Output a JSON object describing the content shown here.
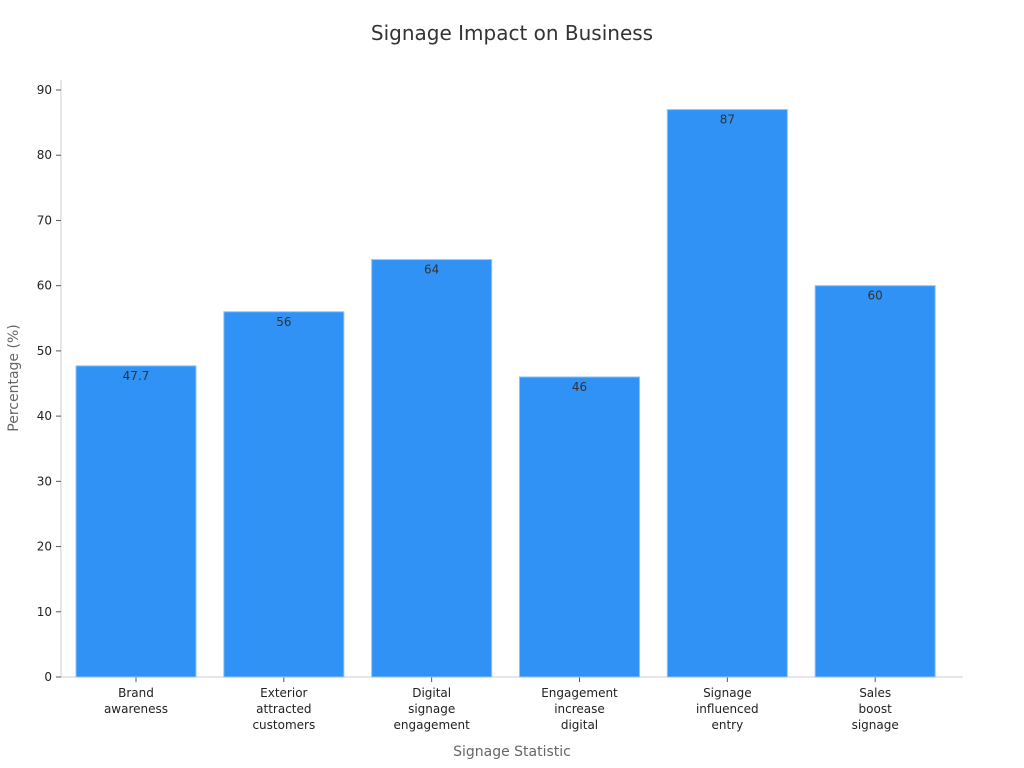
{
  "chart_data": {
    "type": "bar",
    "title": "Signage Impact on Business",
    "xlabel": "Signage Statistic",
    "ylabel": "Percentage (%)",
    "ylim": [
      0,
      90
    ],
    "yticks": [
      0,
      10,
      20,
      30,
      40,
      50,
      60,
      70,
      80,
      90
    ],
    "grid": false,
    "categories": [
      [
        "Brand",
        "awareness"
      ],
      [
        "Exterior",
        "attracted",
        "customers"
      ],
      [
        "Digital",
        "signage",
        "engagement"
      ],
      [
        "Engagement",
        "increase",
        "digital"
      ],
      [
        "Signage",
        "influenced",
        "entry"
      ],
      [
        "Sales",
        "boost",
        "signage"
      ]
    ],
    "values": [
      47.7,
      56,
      64,
      46,
      87,
      60
    ],
    "data_labels": [
      "47.7",
      "56",
      "64",
      "46",
      "87",
      "60"
    ],
    "bar_color": "#3092F5",
    "bar_edge_color": "#8FC1F7"
  }
}
